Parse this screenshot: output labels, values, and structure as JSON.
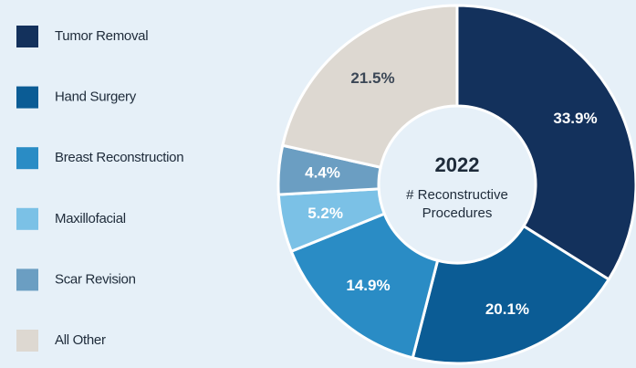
{
  "chart_data": {
    "type": "donut",
    "center_title": "2022",
    "center_label": [
      "# Reconstructive",
      "Procedures"
    ],
    "categories": [
      "Tumor Removal",
      "Hand Surgery",
      "Breast Reconstruction",
      "Maxillofacial",
      "Scar Revision",
      "All Other"
    ],
    "values": [
      33.9,
      20.1,
      14.9,
      5.2,
      4.4,
      21.5
    ],
    "value_labels": [
      "33.9%",
      "20.1%",
      "14.9%",
      "5.2%",
      "4.4%",
      "21.5%"
    ],
    "colors": [
      "#13315c",
      "#0b5c95",
      "#2a8cc5",
      "#7bc1e6",
      "#6b9ec2",
      "#ddd8d1"
    ],
    "legend": "left"
  }
}
